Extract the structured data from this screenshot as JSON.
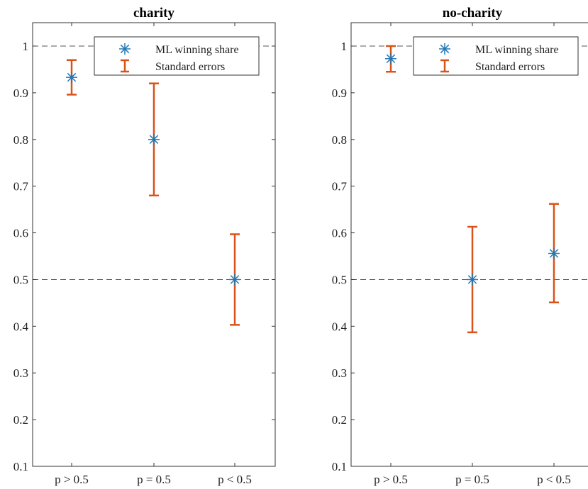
{
  "chart_data": [
    {
      "type": "scatter",
      "title": "charity",
      "xlabel": "",
      "ylabel": "",
      "categories": [
        "p > 0.5",
        "p = 0.5",
        "p < 0.5"
      ],
      "ylim": [
        0.1,
        1.05
      ],
      "yticks": [
        "0.1",
        "0.2",
        "0.3",
        "0.4",
        "0.5",
        "0.6",
        "0.7",
        "0.8",
        "0.9",
        "1"
      ],
      "reference_lines": [
        0.5,
        1
      ],
      "legend": {
        "placement": "top-right",
        "entries": [
          "ML winning share",
          "Standard errors"
        ]
      },
      "series": [
        {
          "name": "ML winning share",
          "values": [
            0.933,
            0.8,
            0.5
          ]
        },
        {
          "name": "Standard errors",
          "lower": [
            0.896,
            0.68,
            0.403
          ],
          "upper": [
            0.97,
            0.92,
            0.597
          ]
        }
      ],
      "colors": {
        "point": "#1f77b4",
        "errorbar": "#d95319",
        "refline": "#555555"
      }
    },
    {
      "type": "scatter",
      "title": "no-charity",
      "xlabel": "",
      "ylabel": "",
      "categories": [
        "p > 0.5",
        "p = 0.5",
        "p < 0.5"
      ],
      "ylim": [
        0.1,
        1.05
      ],
      "yticks": [
        "0.1",
        "0.2",
        "0.3",
        "0.4",
        "0.5",
        "0.6",
        "0.7",
        "0.8",
        "0.9",
        "1"
      ],
      "reference_lines": [
        0.5,
        1
      ],
      "legend": {
        "placement": "top-right",
        "entries": [
          "ML winning share",
          "Standard errors"
        ]
      },
      "series": [
        {
          "name": "ML winning share",
          "values": [
            0.973,
            0.5,
            0.556
          ]
        },
        {
          "name": "Standard errors",
          "lower": [
            0.945,
            0.387,
            0.451
          ],
          "upper": [
            1.0,
            0.613,
            0.662
          ]
        }
      ],
      "colors": {
        "point": "#1f77b4",
        "errorbar": "#d95319",
        "refline": "#555555"
      }
    }
  ]
}
